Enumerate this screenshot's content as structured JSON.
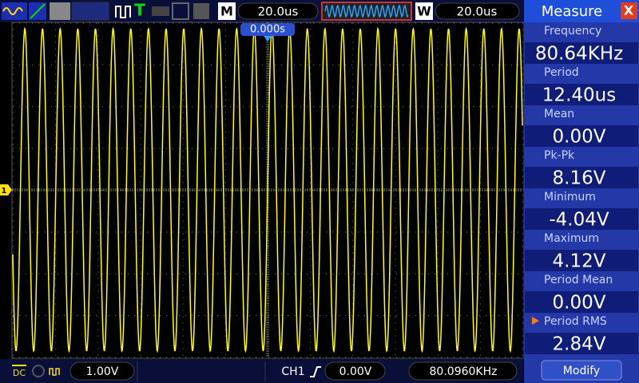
{
  "toolbar": {
    "trigger_icon": "T",
    "m_label": "M",
    "m_time": "20.0us",
    "w_label": "W",
    "w_time": "20.0us",
    "trigger_position": "0.000s"
  },
  "channel_marker": "1",
  "status_bar": {
    "coupling": "DC",
    "volts_per_div": "1.00V",
    "channel": "CH1",
    "trigger_level": "0.00V",
    "frequency": "80.0960KHz"
  },
  "measure": {
    "title": "Measure",
    "close": "X",
    "items": [
      {
        "label": "Frequency",
        "value": "80.64KHz"
      },
      {
        "label": "Period",
        "value": "12.40us"
      },
      {
        "label": "Mean",
        "value": "0.00V"
      },
      {
        "label": "Pk-Pk",
        "value": "8.16V"
      },
      {
        "label": "Minimum",
        "value": "-4.04V"
      },
      {
        "label": "Maximum",
        "value": "4.12V"
      },
      {
        "label": "Period Mean",
        "value": "0.00V"
      },
      {
        "label": "Period RMS",
        "value": "2.84V",
        "selected": true
      }
    ],
    "button": "Modify"
  }
}
